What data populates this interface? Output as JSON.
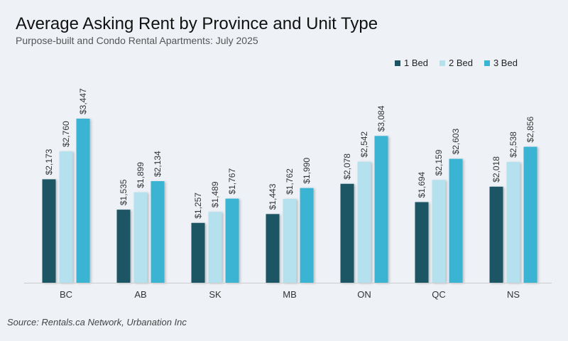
{
  "header": {
    "title": "Average Asking Rent by Province and Unit Type",
    "subtitle": "Purpose-built and Condo Rental Apartments: July 2025"
  },
  "source": "Source: Rentals.ca Network, Urbanation Inc",
  "colors": {
    "bed1": "#1b5564",
    "bed2": "#b5e1ee",
    "bed3": "#3bb4d3",
    "axis": "#cccccc",
    "label": "#333333"
  },
  "chart_data": {
    "type": "bar",
    "title": "Average Asking Rent by Province and Unit Type",
    "subtitle": "Purpose-built and Condo Rental Apartments: July 2025",
    "xlabel": "",
    "ylabel": "",
    "ylim": [
      0,
      3500
    ],
    "grid": false,
    "legend_position": "top-right",
    "categories": [
      "BC",
      "AB",
      "SK",
      "MB",
      "ON",
      "QC",
      "NS"
    ],
    "series": [
      {
        "name": "1 Bed",
        "values": [
          2173,
          1535,
          1257,
          1443,
          2078,
          1694,
          2018
        ],
        "labels": [
          "$2,173",
          "$1,535",
          "$1,257",
          "$1,443",
          "$2,078",
          "$1,694",
          "$2,018"
        ]
      },
      {
        "name": "2 Bed",
        "values": [
          2760,
          1899,
          1489,
          1762,
          2542,
          2159,
          2538
        ],
        "labels": [
          "$2,760",
          "$1,899",
          "$1,489",
          "$1,762",
          "$2,542",
          "$2,159",
          "$2,538"
        ]
      },
      {
        "name": "3 Bed",
        "values": [
          3447,
          2134,
          1767,
          1990,
          3084,
          2603,
          2856
        ],
        "labels": [
          "$3,447",
          "$2,134",
          "$1,767",
          "$1,990",
          "$3,084",
          "$2,603",
          "$2,856"
        ]
      }
    ]
  }
}
